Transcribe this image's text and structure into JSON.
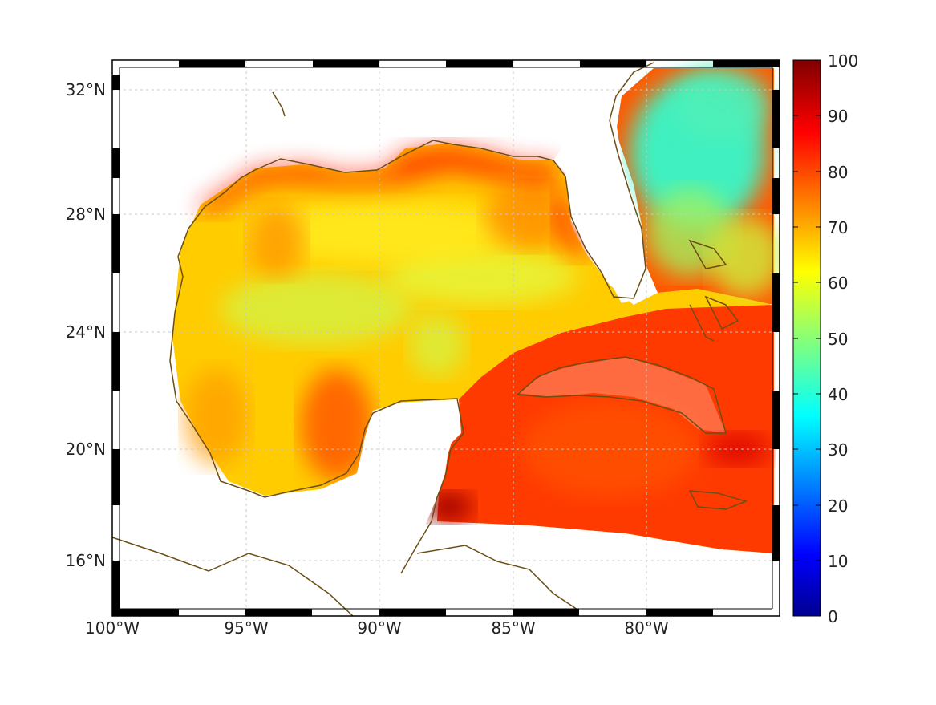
{
  "map": {
    "x_ticks": [
      "100°W",
      "95°W",
      "90°W",
      "85°W",
      "80°W"
    ],
    "y_ticks": [
      "32°N",
      "28°N",
      "24°N",
      "20°N",
      "16°N"
    ],
    "lon_range": [
      -100,
      -75
    ],
    "lat_range": [
      14.2,
      33.0
    ],
    "grid": true,
    "coast_color": "#6b4e16",
    "grid_color": "#c8c8c8"
  },
  "colorbar": {
    "ticks": [
      "100",
      "90",
      "80",
      "70",
      "60",
      "50",
      "40",
      "30",
      "20",
      "10",
      "0"
    ],
    "range": [
      0,
      100
    ],
    "colormap": "jet"
  }
}
